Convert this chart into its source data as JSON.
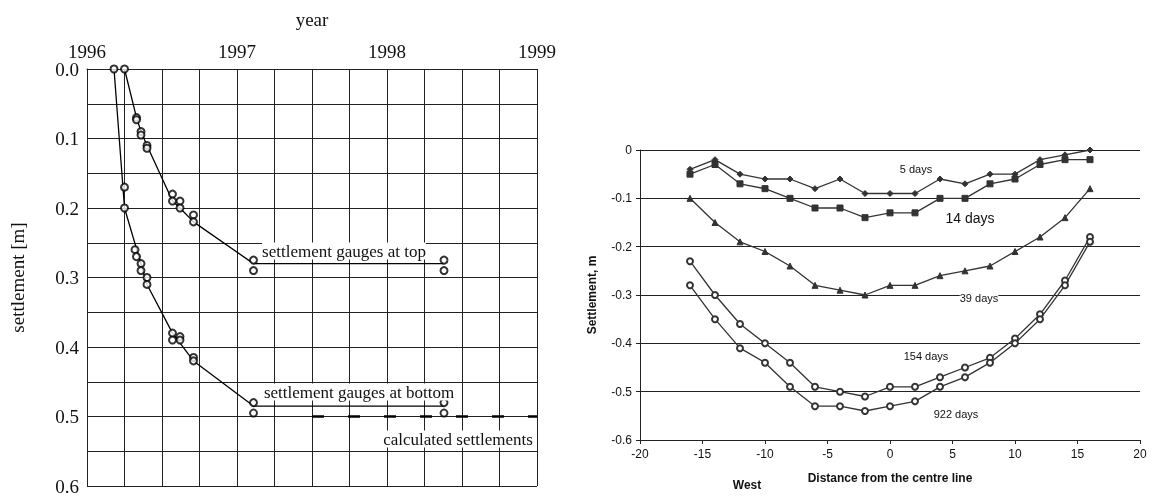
{
  "chart_data": [
    {
      "type": "line",
      "xlabel": "year",
      "ylabel": "settlement [m]",
      "xlim": [
        1996,
        1999
      ],
      "xticks": [
        1996,
        {
          "value": 1996.25,
          "label": null
        },
        {
          "value": 1996.5,
          "label": null
        },
        {
          "value": 1996.75,
          "label": null
        },
        1997,
        {
          "value": 1997.25,
          "label": null
        },
        {
          "value": 1997.5,
          "label": null
        },
        {
          "value": 1997.75,
          "label": null
        },
        1998,
        {
          "value": 1998.25,
          "label": null
        },
        {
          "value": 1998.5,
          "label": null
        },
        {
          "value": 1998.75,
          "label": null
        },
        1999
      ],
      "ylim": [
        0.6,
        0
      ],
      "yticks": [
        {
          "value": 0,
          "label": "0.0"
        },
        {
          "value": 0.05,
          "label": null
        },
        0.1,
        {
          "value": 0.15,
          "label": null
        },
        0.2,
        {
          "value": 0.25,
          "label": null
        },
        0.3,
        {
          "value": 0.35,
          "label": null
        },
        0.4,
        {
          "value": 0.45,
          "label": null
        },
        0.5,
        {
          "value": 0.55,
          "label": null
        },
        0.6
      ],
      "grid": true,
      "marker": "none",
      "series": [
        {
          "color": "#000000",
          "x": [
            1996.25,
            1996.33,
            1996.36,
            1996.4,
            1996.57,
            1996.62,
            1996.71,
            1997.11,
            1998.38
          ],
          "values": [
            0,
            0.07,
            0.09,
            0.11,
            0.19,
            0.2,
            0.22,
            0.28,
            0.28
          ]
        },
        {
          "color": "#000000",
          "x": [
            1996.18,
            1996.25,
            1996.4,
            1996.57,
            1996.71,
            1997.11,
            1998.38
          ],
          "values": [
            0,
            0.2,
            0.31,
            0.38,
            0.42,
            0.485,
            0.485
          ]
        },
        {
          "color": "#000000",
          "line_style": "dashed",
          "x": [
            1997.5,
            1999
          ],
          "values": [
            0.5,
            0.5
          ]
        },
        {
          "type": "scatter",
          "color": "#000000",
          "marker": "circle",
          "x": [
            1996.18,
            1996.25,
            1996.25,
            1996.25,
            1996.33,
            1996.33,
            1996.36,
            1996.36,
            1996.4,
            1996.4,
            1996.57,
            1996.57,
            1996.62,
            1996.62,
            1996.71,
            1996.71,
            1997.11,
            1997.11,
            1998.38,
            1998.38,
            1996.32,
            1996.33,
            1996.36,
            1996.36,
            1996.4,
            1996.4,
            1996.57,
            1996.57,
            1996.62,
            1996.62,
            1996.71,
            1996.71,
            1997.11,
            1997.11,
            1998.38,
            1998.38
          ],
          "values": [
            0,
            0,
            0.17,
            0.2,
            0.07,
            0.073,
            0.09,
            0.095,
            0.11,
            0.114,
            0.18,
            0.19,
            0.19,
            0.2,
            0.21,
            0.22,
            0.275,
            0.29,
            0.275,
            0.29,
            0.26,
            0.27,
            0.28,
            0.29,
            0.3,
            0.31,
            0.38,
            0.39,
            0.385,
            0.39,
            0.415,
            0.42,
            0.48,
            0.495,
            0.48,
            0.495
          ]
        }
      ],
      "annotations": [
        "settlement gauges at top",
        "settlement gauges at bottom",
        "calculated settlements"
      ]
    },
    {
      "type": "line",
      "xlabel": "Distance from the centre line",
      "ylabel": "Settlement, m",
      "xlim": [
        -20,
        20
      ],
      "xticks": [
        -20,
        -15,
        -10,
        -5,
        0,
        5,
        10,
        15,
        20
      ],
      "ylim": [
        -0.6,
        0
      ],
      "yticks": [
        -0.6,
        -0.5,
        -0.4,
        -0.3,
        -0.2,
        -0.1,
        0
      ],
      "grid": "y",
      "x": [
        -16,
        -14,
        -12,
        -10,
        -8,
        -6,
        -4,
        -2,
        0,
        2,
        4,
        6,
        8,
        10,
        12,
        14,
        16
      ],
      "series": [
        {
          "color": "#333333",
          "marker": "diamond",
          "values": [
            -0.04,
            -0.02,
            -0.05,
            -0.06,
            -0.06,
            -0.08,
            -0.06,
            -0.09,
            -0.09,
            -0.09,
            -0.06,
            -0.07,
            -0.05,
            -0.05,
            -0.02,
            -0.01,
            0
          ]
        },
        {
          "color": "#333333",
          "marker": "square",
          "values": [
            -0.05,
            -0.03,
            -0.07,
            -0.08,
            -0.1,
            -0.12,
            -0.12,
            -0.14,
            -0.13,
            -0.13,
            -0.1,
            -0.1,
            -0.07,
            -0.06,
            -0.03,
            -0.02,
            -0.02
          ]
        },
        {
          "color": "#333333",
          "marker": "triangle",
          "values": [
            -0.1,
            -0.15,
            -0.19,
            -0.21,
            -0.24,
            -0.28,
            -0.29,
            -0.3,
            -0.28,
            -0.28,
            -0.26,
            -0.25,
            -0.24,
            -0.21,
            -0.18,
            -0.14,
            -0.08
          ]
        },
        {
          "color": "#333333",
          "marker": "circle",
          "values": [
            -0.23,
            -0.3,
            -0.36,
            -0.4,
            -0.44,
            -0.49,
            -0.5,
            -0.51,
            -0.49,
            -0.49,
            -0.47,
            -0.45,
            -0.43,
            -0.39,
            -0.34,
            -0.27,
            -0.18
          ]
        },
        {
          "color": "#333333",
          "marker": "circle",
          "values": [
            -0.28,
            -0.35,
            -0.41,
            -0.44,
            -0.49,
            -0.53,
            -0.53,
            -0.54,
            -0.53,
            -0.52,
            -0.49,
            -0.47,
            -0.44,
            -0.4,
            -0.35,
            -0.28,
            -0.19
          ]
        }
      ],
      "annotations": [
        "5 days",
        "14 days",
        "39 days",
        "154 days",
        "922 days",
        "West"
      ]
    }
  ]
}
